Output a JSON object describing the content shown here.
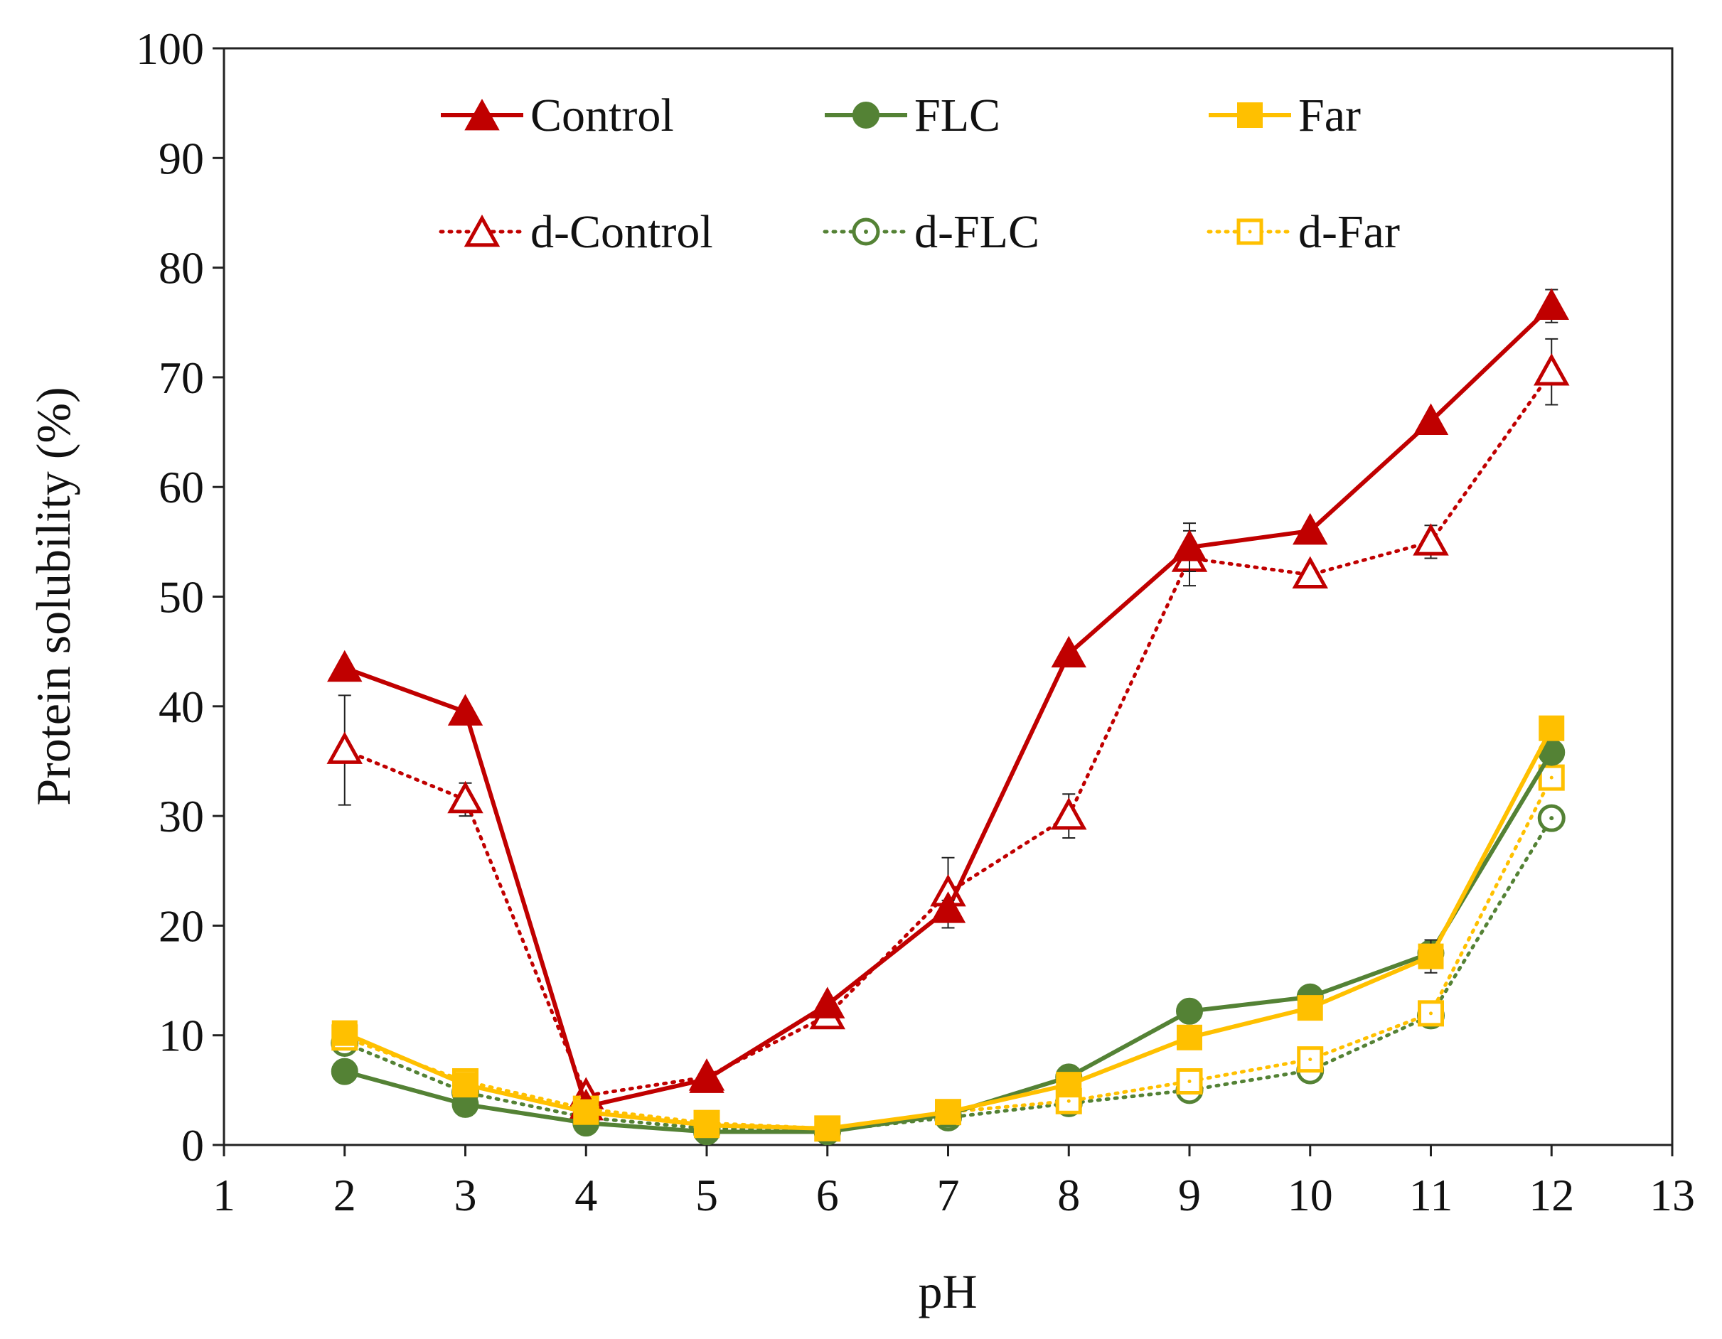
{
  "chart_data": {
    "type": "line",
    "title": "",
    "xlabel": "pH",
    "ylabel": "Protein solubility (%)",
    "xlim": [
      1,
      13
    ],
    "ylim": [
      0,
      100
    ],
    "xticks": [
      1,
      2,
      3,
      4,
      5,
      6,
      7,
      8,
      9,
      10,
      11,
      12,
      13
    ],
    "yticks": [
      0,
      10,
      20,
      30,
      40,
      50,
      60,
      70,
      80,
      90,
      100
    ],
    "grid": false,
    "legend_position": "top",
    "x": [
      2,
      3,
      4,
      5,
      6,
      7,
      8,
      9,
      10,
      11,
      12
    ],
    "series": [
      {
        "name": "Control",
        "color": "#C00000",
        "marker": "triangle",
        "filled": true,
        "line": "solid",
        "values": [
          43.5,
          39.5,
          3.5,
          6.0,
          12.8,
          21.5,
          44.8,
          54.5,
          56.0,
          66.0,
          76.5
        ],
        "errors": [
          0.5,
          0.5,
          0.3,
          0.3,
          0.3,
          0.8,
          0.5,
          2.2,
          0.5,
          0.5,
          1.5
        ]
      },
      {
        "name": "FLC",
        "color": "#548235",
        "marker": "circle",
        "filled": true,
        "line": "solid",
        "values": [
          6.7,
          3.7,
          2.0,
          1.2,
          1.2,
          2.8,
          6.2,
          12.2,
          13.5,
          17.5,
          35.8
        ],
        "errors": [
          0.3,
          0.3,
          0.3,
          0.2,
          0.2,
          0.3,
          0.3,
          0.3,
          0.3,
          1.0,
          0.8
        ]
      },
      {
        "name": "Far",
        "color": "#FFC000",
        "marker": "square",
        "filled": true,
        "line": "solid",
        "values": [
          10.2,
          5.5,
          3.0,
          1.8,
          1.5,
          3.0,
          5.5,
          9.8,
          12.5,
          17.2,
          38.0
        ],
        "errors": [
          0.3,
          0.3,
          0.3,
          0.2,
          0.2,
          0.3,
          0.3,
          0.3,
          0.3,
          1.5,
          0.5
        ]
      },
      {
        "name": "d-Control",
        "color": "#C00000",
        "marker": "triangle",
        "filled": false,
        "line": "dotted",
        "values": [
          36.0,
          31.5,
          4.5,
          6.2,
          11.8,
          23.0,
          30.0,
          53.5,
          52.0,
          55.0,
          70.5
        ],
        "errors": [
          5.0,
          1.5,
          0.3,
          0.3,
          0.3,
          3.2,
          2.0,
          2.5,
          0.5,
          1.5,
          3.0
        ]
      },
      {
        "name": "d-FLC",
        "color": "#548235",
        "marker": "circle",
        "filled": false,
        "line": "dotted",
        "values": [
          9.3,
          4.8,
          2.5,
          1.5,
          1.3,
          2.5,
          3.8,
          5.0,
          6.8,
          11.8,
          29.8
        ],
        "errors": [
          0.3,
          0.3,
          0.3,
          0.2,
          0.2,
          0.3,
          0.5,
          0.5,
          0.5,
          0.5,
          1.0
        ]
      },
      {
        "name": "d-Far",
        "color": "#FFC000",
        "marker": "square",
        "filled": false,
        "line": "dotted",
        "values": [
          9.8,
          5.8,
          3.3,
          2.0,
          1.5,
          3.0,
          4.0,
          5.8,
          7.8,
          12.0,
          33.5
        ],
        "errors": [
          0.3,
          0.3,
          0.3,
          0.2,
          0.2,
          0.3,
          0.5,
          0.5,
          0.5,
          0.8,
          1.0
        ]
      }
    ]
  }
}
